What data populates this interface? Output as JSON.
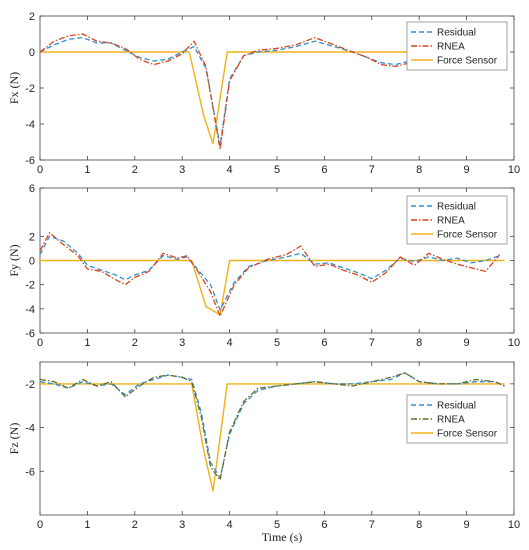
{
  "figure": {
    "xlabel": "Time (s)"
  },
  "colors": {
    "residual": "#2e8fd0",
    "rnea": "#d9451c",
    "rnea_fz": "#6b6a2a",
    "force": "#f0b216",
    "axis": "#444444",
    "background": "#ffffff"
  },
  "chart_data": [
    {
      "type": "line",
      "ylabel": "Fx (N)",
      "xlim": [
        0,
        10
      ],
      "ylim": [
        -6,
        2
      ],
      "xticks": [
        "0",
        "1",
        "2",
        "3",
        "4",
        "5",
        "6",
        "7",
        "8",
        "9",
        "10"
      ],
      "yticks": [
        "2",
        "0",
        "-2",
        "-4",
        "-6"
      ],
      "grid": false,
      "legend": "top-right",
      "series": [
        {
          "name": "Residual",
          "style": "dashed",
          "color_key": "residual",
          "x": [
            0,
            0.3,
            0.6,
            0.9,
            1.2,
            1.5,
            1.8,
            2.1,
            2.4,
            2.7,
            3.0,
            3.25,
            3.5,
            3.8,
            4.0,
            4.3,
            4.6,
            5.0,
            5.4,
            5.8,
            6.2,
            6.6,
            6.9,
            7.2,
            7.5,
            7.8,
            8.0
          ],
          "y": [
            0,
            0.4,
            0.7,
            0.8,
            0.5,
            0.5,
            0.1,
            -0.3,
            -0.5,
            -0.4,
            0,
            0.3,
            -0.9,
            -5.2,
            -1.5,
            -0.2,
            0,
            0.1,
            0.3,
            0.6,
            0.3,
            0,
            -0.3,
            -0.6,
            -0.7,
            -0.5,
            0.1
          ]
        },
        {
          "name": "RNEA",
          "style": "dashdot",
          "color_key": "rnea",
          "x": [
            0,
            0.3,
            0.6,
            0.9,
            1.2,
            1.5,
            1.8,
            2.1,
            2.4,
            2.7,
            3.0,
            3.25,
            3.5,
            3.8,
            4.0,
            4.3,
            4.6,
            5.0,
            5.4,
            5.8,
            6.2,
            6.6,
            6.9,
            7.2,
            7.5,
            7.8,
            8.0
          ],
          "y": [
            0,
            0.6,
            0.9,
            1.0,
            0.6,
            0.5,
            0.2,
            -0.4,
            -0.7,
            -0.5,
            -0.1,
            0.6,
            -0.8,
            -5.4,
            -1.6,
            -0.2,
            0.1,
            0.2,
            0.4,
            0.8,
            0.4,
            0,
            -0.3,
            -0.7,
            -0.8,
            -0.6,
            0.1
          ]
        },
        {
          "name": "Force Sensor",
          "style": "solid",
          "color_key": "force",
          "x": [
            0,
            3.15,
            3.45,
            3.65,
            3.95,
            8.0
          ],
          "y": [
            0,
            0,
            -3.5,
            -5.1,
            0,
            0
          ]
        }
      ]
    },
    {
      "type": "line",
      "ylabel": "Fy (N)",
      "xlim": [
        0,
        10
      ],
      "ylim": [
        -6,
        6
      ],
      "xticks": [
        "0",
        "1",
        "2",
        "3",
        "4",
        "5",
        "6",
        "7",
        "8",
        "9",
        "10"
      ],
      "yticks": [
        "6",
        "2",
        "0",
        "-2",
        "-4",
        "-6"
      ],
      "grid": false,
      "legend": "top-right",
      "series": [
        {
          "name": "Residual",
          "style": "dashed",
          "color_key": "residual",
          "x": [
            0,
            0.2,
            0.5,
            0.8,
            1.0,
            1.3,
            1.6,
            1.8,
            2.0,
            2.3,
            2.6,
            2.9,
            3.1,
            3.3,
            3.6,
            3.8,
            4.1,
            4.4,
            4.8,
            5.2,
            5.5,
            5.8,
            6.1,
            6.4,
            6.7,
            7.0,
            7.3,
            7.6,
            7.9,
            8.2,
            8.5,
            8.8,
            9.1,
            9.4,
            9.7
          ],
          "y": [
            0.5,
            2.0,
            1.6,
            0.6,
            -0.4,
            -0.8,
            -1.2,
            -1.6,
            -1.2,
            -0.8,
            0.4,
            0.1,
            0.3,
            -0.6,
            -2.0,
            -4.1,
            -1.8,
            -0.5,
            0,
            0.3,
            0.6,
            -0.3,
            -0.2,
            -0.6,
            -1.0,
            -1.5,
            -0.8,
            0.2,
            -0.1,
            0.3,
            0,
            0.2,
            -0.2,
            0,
            0.4
          ]
        },
        {
          "name": "RNEA",
          "style": "dashdot",
          "color_key": "rnea",
          "x": [
            0,
            0.2,
            0.5,
            0.8,
            1.0,
            1.3,
            1.6,
            1.8,
            2.0,
            2.3,
            2.6,
            2.9,
            3.1,
            3.3,
            3.6,
            3.8,
            4.1,
            4.4,
            4.8,
            5.2,
            5.5,
            5.8,
            6.1,
            6.4,
            6.7,
            7.0,
            7.3,
            7.6,
            7.9,
            8.2,
            8.5,
            8.8,
            9.1,
            9.4,
            9.7
          ],
          "y": [
            0.8,
            2.3,
            1.3,
            0.4,
            -0.7,
            -0.9,
            -1.6,
            -2.0,
            -1.4,
            -0.9,
            0.6,
            0.2,
            0.4,
            -0.7,
            -2.6,
            -4.6,
            -2.0,
            -0.6,
            0.1,
            0.5,
            1.2,
            -0.5,
            -0.3,
            -0.8,
            -1.2,
            -1.8,
            -1.0,
            0.3,
            -0.4,
            0.6,
            0.1,
            -0.3,
            -0.6,
            -0.9,
            0.5
          ]
        },
        {
          "name": "Force Sensor",
          "style": "solid",
          "color_key": "force",
          "x": [
            0,
            3.2,
            3.5,
            3.8,
            4.0,
            9.8
          ],
          "y": [
            0,
            0,
            -3.8,
            -4.5,
            0,
            0
          ]
        }
      ]
    },
    {
      "type": "line",
      "ylabel": "Fz (N)",
      "xlim": [
        0,
        10
      ],
      "ylim": [
        -8,
        -1
      ],
      "xticks": [
        "0",
        "1",
        "2",
        "3",
        "4",
        "5",
        "6",
        "7",
        "8",
        "9",
        "10"
      ],
      "yticks": [
        "-2",
        "-4",
        "-6"
      ],
      "grid": false,
      "legend": "center-right",
      "series": [
        {
          "name": "Residual",
          "style": "dashed",
          "color_key": "residual",
          "x": [
            0,
            0.3,
            0.6,
            0.9,
            1.2,
            1.5,
            1.8,
            2.1,
            2.4,
            2.7,
            3.0,
            3.2,
            3.4,
            3.6,
            3.8,
            4.0,
            4.3,
            4.6,
            5.0,
            5.4,
            5.8,
            6.2,
            6.6,
            7.0,
            7.4,
            7.7,
            8.0,
            8.4,
            8.8,
            9.2,
            9.6,
            9.8
          ],
          "y": [
            -1.9,
            -2.0,
            -2.2,
            -1.9,
            -2.1,
            -2.0,
            -2.5,
            -2.0,
            -1.8,
            -1.6,
            -1.7,
            -1.8,
            -3.3,
            -5.6,
            -6.3,
            -4.3,
            -2.9,
            -2.3,
            -2.1,
            -2.0,
            -1.9,
            -2.0,
            -2.0,
            -1.9,
            -1.8,
            -1.5,
            -1.9,
            -2.0,
            -2.0,
            -1.9,
            -1.9,
            -2.1
          ]
        },
        {
          "name": "RNEA",
          "style": "dashdot",
          "color_key": "rnea_fz",
          "x": [
            0,
            0.3,
            0.6,
            0.9,
            1.2,
            1.5,
            1.8,
            2.1,
            2.4,
            2.7,
            3.0,
            3.2,
            3.4,
            3.6,
            3.8,
            4.0,
            4.3,
            4.6,
            5.0,
            5.4,
            5.8,
            6.2,
            6.6,
            7.0,
            7.4,
            7.7,
            8.0,
            8.4,
            8.8,
            9.2,
            9.6,
            9.8
          ],
          "y": [
            -1.8,
            -1.9,
            -2.2,
            -1.8,
            -2.1,
            -1.9,
            -2.6,
            -2.1,
            -1.7,
            -1.6,
            -1.7,
            -1.9,
            -3.5,
            -5.8,
            -6.4,
            -4.2,
            -2.8,
            -2.2,
            -2.1,
            -2.0,
            -1.9,
            -2.0,
            -2.1,
            -1.9,
            -1.7,
            -1.5,
            -1.9,
            -2.0,
            -2.0,
            -1.8,
            -1.9,
            -2.1
          ]
        },
        {
          "name": "Force Sensor",
          "style": "solid",
          "color_key": "force",
          "x": [
            0,
            3.2,
            3.45,
            3.65,
            3.95,
            9.8
          ],
          "y": [
            -2.0,
            -2.0,
            -5.0,
            -6.9,
            -2.0,
            -2.0
          ]
        }
      ]
    }
  ]
}
